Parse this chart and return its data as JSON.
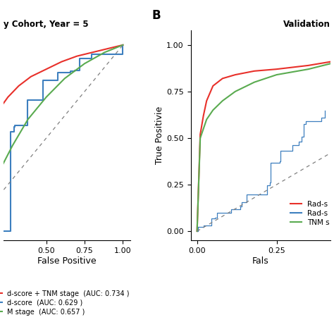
{
  "panel_A_title": "y Cohort, Year = 5",
  "panel_B_title": "Validation",
  "panel_B_label": "B",
  "ylabel": "True Positivie",
  "xlabel_A": "False Positive",
  "xlabel_B": "Fals",
  "legend_labels": [
    "Rad-s",
    "Rad-s",
    "TNM s"
  ],
  "panel_A_legend": [
    "d-score + TNM stage  (AUC: 0.734 )",
    "d-score  (AUC: 0.629 )",
    "M stage  (AUC: 0.657 )"
  ],
  "colors": {
    "red": "#e8302a",
    "blue": "#3d7fbf",
    "green": "#5aab50"
  },
  "background": "#ffffff",
  "panel_A_xlim": [
    0.22,
    1.05
  ],
  "panel_A_ylim": [
    -0.05,
    1.08
  ],
  "panel_B_xlim": [
    -0.02,
    0.42
  ],
  "panel_B_ylim": [
    -0.05,
    1.08
  ]
}
